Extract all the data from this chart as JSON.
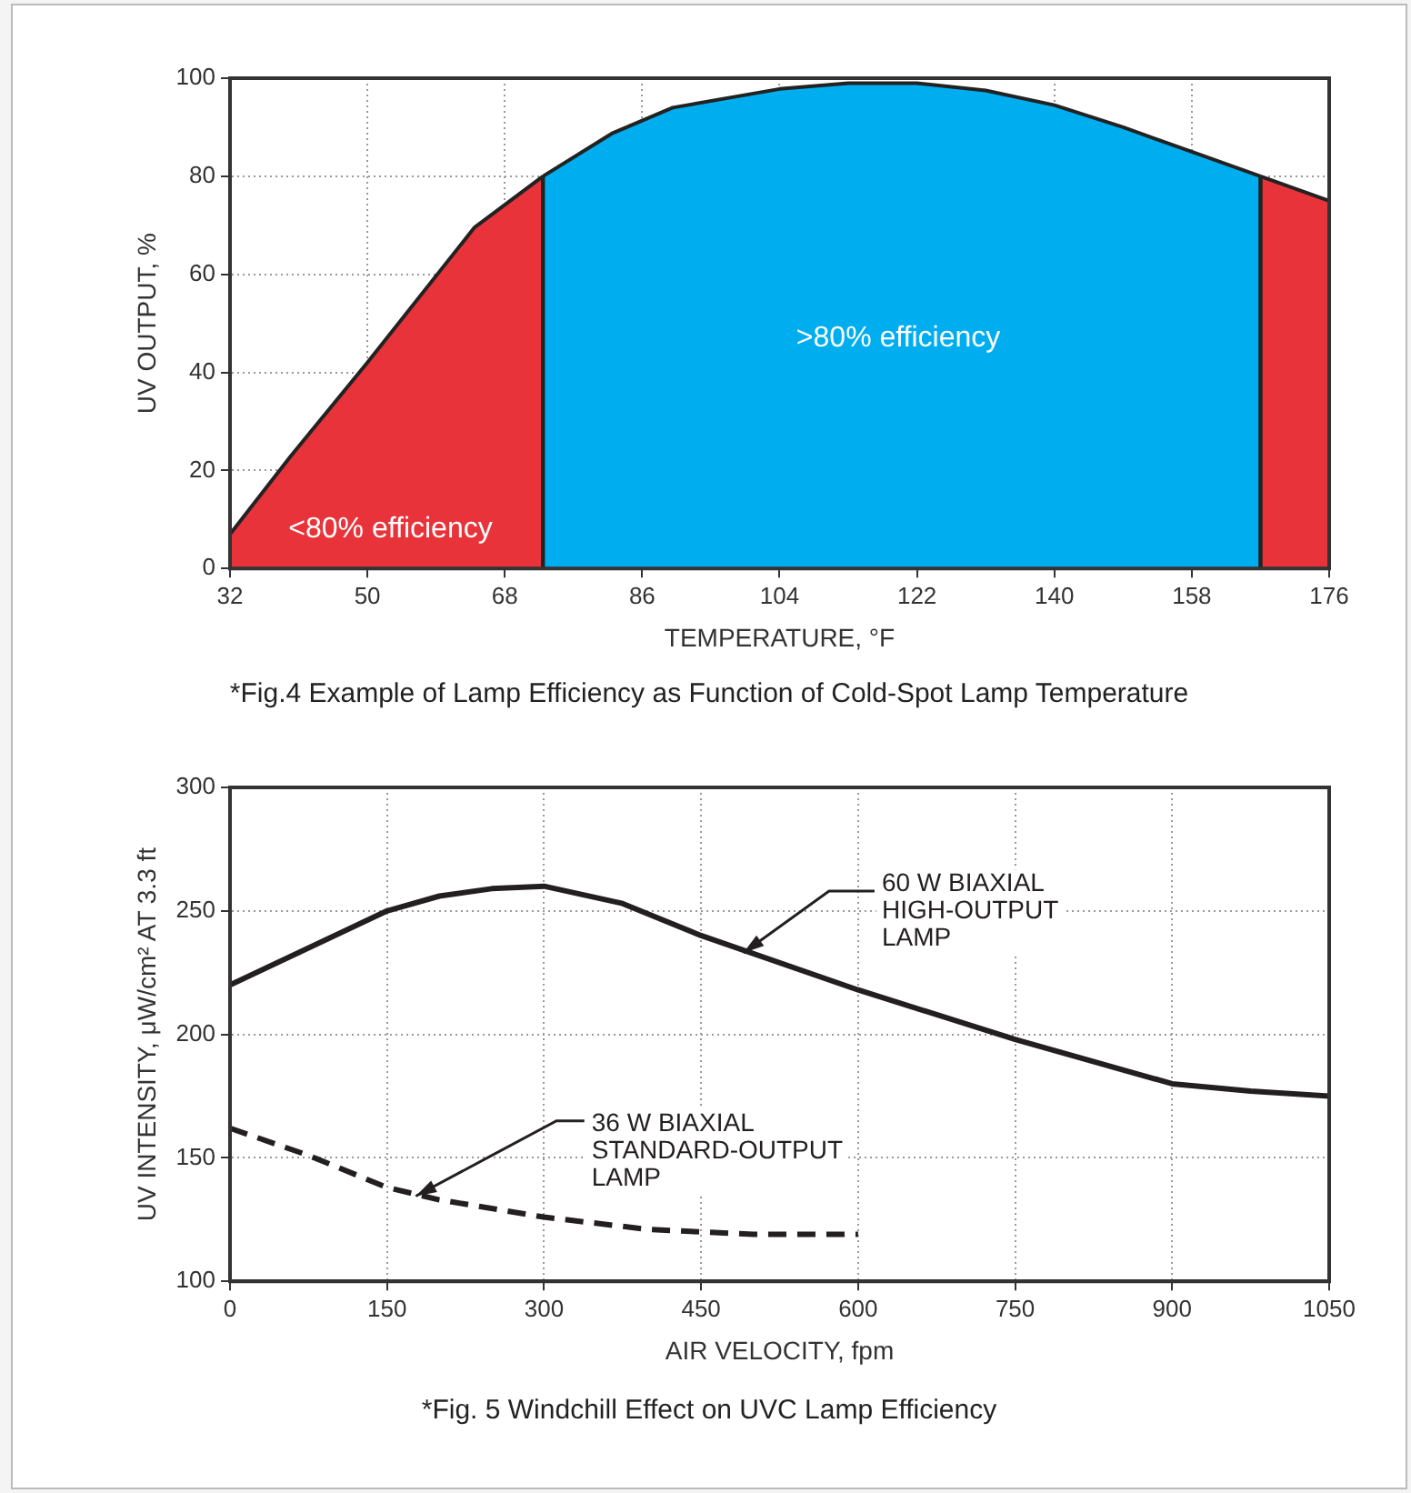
{
  "chart_data": [
    {
      "type": "area",
      "xlabel": "TEMPERATURE, °F",
      "ylabel": "UV OUTPUT, %",
      "xlim": [
        32,
        176
      ],
      "xticks": [
        32,
        50,
        68,
        86,
        104,
        122,
        140,
        158,
        176
      ],
      "ylim": [
        0,
        100
      ],
      "yticks": [
        0,
        20,
        40,
        60,
        80,
        100
      ],
      "grid": true,
      "legend": false,
      "marker": "none",
      "series": [
        {
          "color": "#e8333a",
          "x": [
            32,
            40,
            50,
            64,
            73
          ],
          "values": [
            7,
            23,
            42,
            69.5,
            80
          ]
        },
        {
          "color": "#00aeef",
          "x": [
            73,
            82,
            90,
            104,
            113,
            122,
            131,
            140,
            149,
            158,
            167
          ],
          "values": [
            80,
            88.7,
            94,
            97.8,
            99,
            99,
            97.5,
            94.5,
            90,
            85,
            80
          ]
        },
        {
          "color": "#e8333a",
          "x": [
            167,
            176
          ],
          "values": [
            80,
            75
          ]
        }
      ],
      "annotations": [
        "<80% efficiency",
        ">80% efficiency",
        "*Fig.4 Example of Lamp Efficiency as Function of Cold-Spot Lamp Temperature"
      ]
    },
    {
      "type": "line",
      "xlabel": "AIR VELOCITY, fpm",
      "ylabel": "UV INTENSITY, μW/cm² AT 3.3 ft",
      "xlim": [
        0,
        1050
      ],
      "xticks": [
        0,
        150,
        300,
        450,
        600,
        750,
        900,
        1050
      ],
      "ylim": [
        100,
        300
      ],
      "yticks": [
        100,
        150,
        200,
        250,
        300
      ],
      "grid": true,
      "legend": false,
      "marker": "none",
      "series": [
        {
          "name": "60 W BIAXIAL HIGH-OUTPUT LAMP",
          "color": "#231f20",
          "line_style": "solid",
          "x": [
            0,
            150,
            200,
            250,
            300,
            375,
            450,
            600,
            750,
            900,
            975,
            1050
          ],
          "values": [
            220,
            250,
            256,
            259,
            260,
            253,
            240,
            218,
            198,
            180,
            177,
            175
          ]
        },
        {
          "name": "36 W BIAXIAL STANDARD-OUTPUT LAMP",
          "color": "#231f20",
          "line_style": "dashed",
          "x": [
            0,
            75,
            150,
            200,
            300,
            400,
            450,
            500,
            600
          ],
          "values": [
            162,
            151,
            138,
            133,
            126,
            121,
            120,
            119,
            119
          ]
        }
      ],
      "annotations": [
        "*Fig. 5 Windchill Effect on UVC Lamp Efficiency"
      ]
    }
  ]
}
